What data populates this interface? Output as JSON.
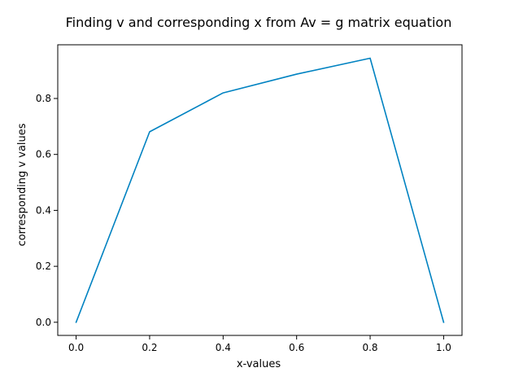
{
  "chart_data": {
    "type": "line",
    "title": "Finding v and corresponding x from Av = g matrix equation",
    "xlabel": "x-values",
    "ylabel": "corresponding v values",
    "xlim": [
      -0.05,
      1.05
    ],
    "ylim": [
      -0.047,
      0.992
    ],
    "x_ticks": [
      0.0,
      0.2,
      0.4,
      0.6,
      0.8,
      1.0
    ],
    "x_tick_labels": [
      "0.0",
      "0.2",
      "0.4",
      "0.6",
      "0.8",
      "1.0"
    ],
    "y_ticks": [
      0.0,
      0.2,
      0.4,
      0.6,
      0.8
    ],
    "y_tick_labels": [
      "0.0",
      "0.2",
      "0.4",
      "0.6",
      "0.8"
    ],
    "grid": false,
    "series": [
      {
        "color": "#0082c1",
        "x": [
          0.0,
          0.2,
          0.4,
          0.6,
          0.8,
          1.0
        ],
        "y": [
          0.0,
          0.681,
          0.82,
          0.887,
          0.944,
          0.0
        ]
      }
    ]
  }
}
